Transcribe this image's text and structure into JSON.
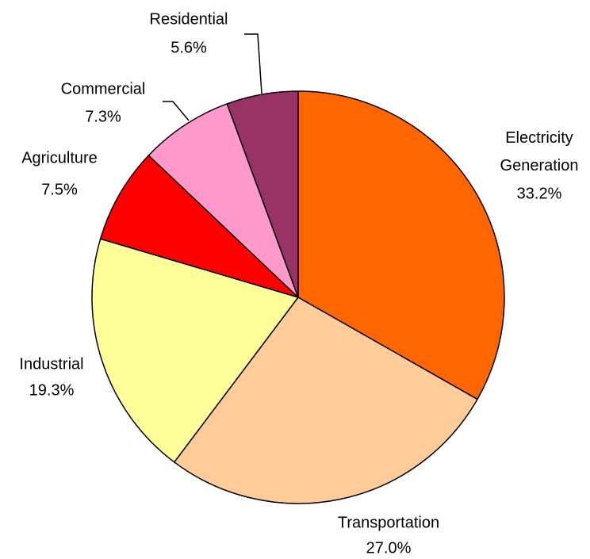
{
  "chart_data": {
    "type": "pie",
    "categories": [
      "Electricity Generation",
      "Transportation",
      "Industrial",
      "Agriculture",
      "Commercial",
      "Residential"
    ],
    "values": [
      33.2,
      27.0,
      19.3,
      7.5,
      7.3,
      5.6
    ],
    "value_labels": [
      "33.2%",
      "27.0%",
      "19.3%",
      "7.5%",
      "7.3%",
      "5.6%"
    ],
    "colors": [
      "#ff6600",
      "#ffcc99",
      "#ffff99",
      "#ff0000",
      "#ff99cc",
      "#993366"
    ]
  }
}
